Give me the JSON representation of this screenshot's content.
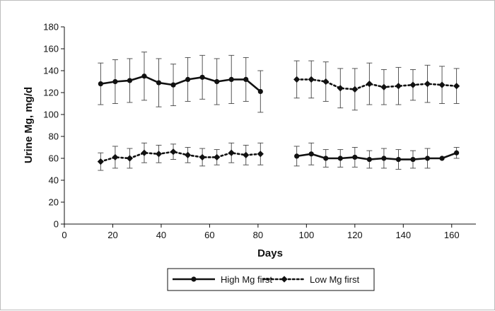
{
  "chart_data": {
    "type": "line",
    "xlabel": "Days",
    "ylabel": "Urine Mg, mg/d",
    "xlim": [
      0,
      170
    ],
    "ylim": [
      0,
      180
    ],
    "x_ticks": [
      0,
      20,
      40,
      60,
      80,
      100,
      120,
      140,
      160
    ],
    "y_ticks": [
      0,
      20,
      40,
      60,
      80,
      100,
      120,
      140,
      160,
      180
    ],
    "grid": false,
    "legend_position": "bottom",
    "series": [
      {
        "name": "High Mg first",
        "marker": "circle",
        "line_style": "solid",
        "color": "#111111",
        "segments": [
          {
            "x": [
              15,
              21,
              27,
              33,
              39,
              45,
              51,
              57,
              63,
              69,
              75,
              81
            ],
            "y": [
              128,
              130,
              131,
              135,
              129,
              127,
              132,
              134,
              130,
              132,
              132,
              121
            ],
            "err": [
              19,
              20,
              20,
              22,
              22,
              19,
              20,
              20,
              21,
              22,
              20,
              19
            ]
          },
          {
            "x": [
              96,
              102,
              108,
              114,
              120,
              126,
              132,
              138,
              144,
              150,
              156,
              162
            ],
            "y": [
              62,
              64,
              60,
              60,
              61,
              59,
              60,
              59,
              59,
              60,
              60,
              65
            ],
            "err": [
              9,
              10,
              8,
              8,
              9,
              8,
              9,
              9,
              8,
              9,
              0,
              5
            ]
          }
        ]
      },
      {
        "name": "Low Mg first",
        "marker": "diamond",
        "line_style": "dotted",
        "color": "#111111",
        "segments": [
          {
            "x": [
              15,
              21,
              27,
              33,
              39,
              45,
              51,
              57,
              63,
              69,
              75,
              81
            ],
            "y": [
              57,
              61,
              60,
              65,
              64,
              66,
              63,
              61,
              61,
              65,
              63,
              64
            ],
            "err": [
              8,
              10,
              9,
              9,
              8,
              7,
              7,
              8,
              7,
              9,
              9,
              10
            ]
          },
          {
            "x": [
              96,
              102,
              108,
              114,
              120,
              126,
              132,
              138,
              144,
              150,
              156,
              162
            ],
            "y": [
              132,
              132,
              130,
              124,
              123,
              128,
              125,
              126,
              127,
              128,
              127,
              126
            ],
            "err": [
              17,
              17,
              18,
              18,
              19,
              19,
              16,
              17,
              14,
              17,
              17,
              16
            ]
          }
        ]
      }
    ]
  }
}
